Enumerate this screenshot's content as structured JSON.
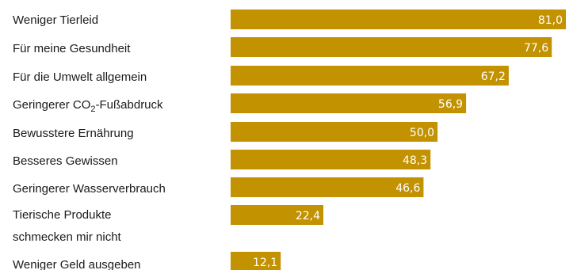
{
  "chart_data": {
    "type": "bar",
    "orientation": "horizontal",
    "bar_color": "#C39200",
    "value_label_color": "#FFFFFF",
    "categories": [
      "Weniger Tierleid",
      "Für meine Gesundheit",
      "Für die Umwelt allgemein",
      "Geringerer CO₂-Fußabdruck",
      "Bewusstere Ernährung",
      "Besseres Gewissen",
      "Geringerer Wasserverbrauch",
      "Tierische Produkte schmecken mir nicht",
      "Weniger Geld ausgeben"
    ],
    "values": [
      81.0,
      77.6,
      67.2,
      56.9,
      50.0,
      48.3,
      46.6,
      22.4,
      12.1
    ],
    "value_labels": [
      "81,0",
      "77,6",
      "67,2",
      "56,9",
      "50,0",
      "48,3",
      "46,6",
      "22,4",
      "12,1"
    ],
    "xlim": [
      0,
      81
    ]
  }
}
